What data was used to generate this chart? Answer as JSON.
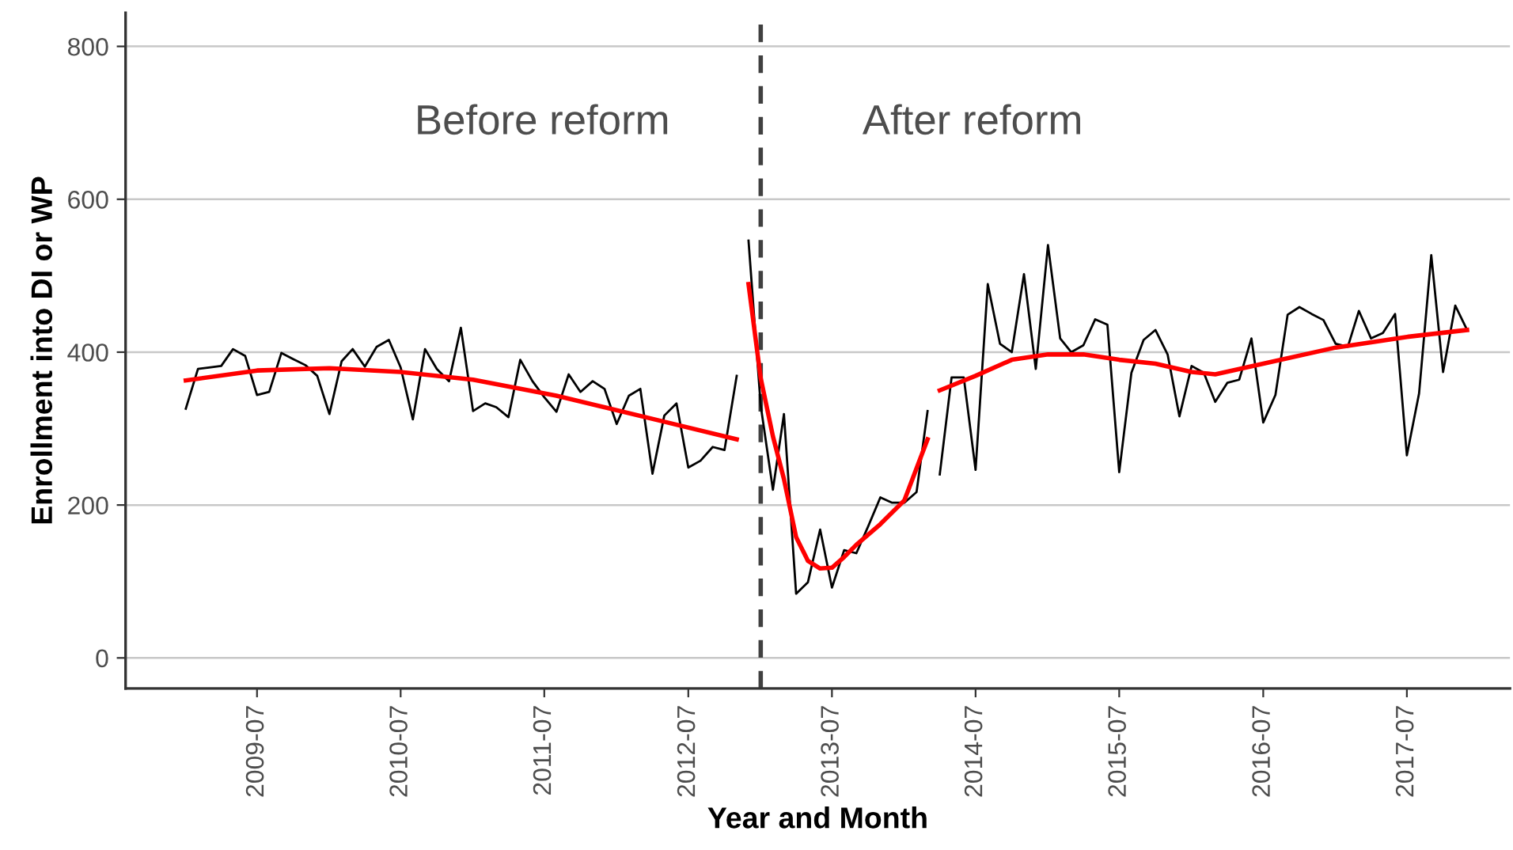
{
  "chart_data": {
    "type": "line",
    "xlabel": "Year and Month",
    "ylabel": "Enrollment into DI or WP",
    "xlim": [
      "2008-08-01",
      "2018-03-20"
    ],
    "xticks": [
      "2009-07",
      "2010-07",
      "2011-07",
      "2012-07",
      "2013-07",
      "2014-07",
      "2015-07",
      "2016-07",
      "2017-07"
    ],
    "ylim": [
      -40,
      844
    ],
    "yticks": [
      0,
      200,
      400,
      600,
      800
    ],
    "grid": "y",
    "legend": false,
    "marker": "none",
    "line_style": "solid",
    "ref_lines": [
      {
        "axis": "x",
        "value": "2013-01",
        "label": null,
        "color": "#404040",
        "line_style": "dashed"
      }
    ],
    "annotations": [
      "Before reform",
      "After reform"
    ],
    "series": [
      {
        "color": "#000000",
        "x": [
          "2009-01",
          "2009-02",
          "2009-03",
          "2009-04",
          "2009-05",
          "2009-06",
          "2009-07",
          "2009-08",
          "2009-09",
          "2009-10",
          "2009-11",
          "2009-12",
          "2010-01",
          "2010-02",
          "2010-03",
          "2010-04",
          "2010-05",
          "2010-06",
          "2010-07",
          "2010-08",
          "2010-09",
          "2010-10",
          "2010-11",
          "2010-12",
          "2011-01",
          "2011-02",
          "2011-03",
          "2011-04",
          "2011-05",
          "2011-06",
          "2011-07",
          "2011-08",
          "2011-09",
          "2011-10",
          "2011-11",
          "2011-12",
          "2012-01",
          "2012-02",
          "2012-03",
          "2012-04",
          "2012-05",
          "2012-06",
          "2012-07",
          "2012-08",
          "2012-09",
          "2012-10",
          "2012-11"
        ],
        "values": [
          326,
          378,
          380,
          382,
          404,
          395,
          344,
          348,
          399,
          391,
          383,
          369,
          319,
          388,
          404,
          381,
          407,
          416,
          380,
          312,
          404,
          378,
          362,
          432,
          323,
          333,
          328,
          315,
          390,
          362,
          341,
          322,
          371,
          348,
          362,
          352,
          306,
          343,
          352,
          241,
          317,
          333,
          249,
          258,
          276,
          272,
          369
        ]
      },
      {
        "color": "#000000",
        "x": [
          "2012-12",
          "2013-01",
          "2013-02",
          "2013-03",
          "2013-04",
          "2013-05",
          "2013-06",
          "2013-07",
          "2013-08",
          "2013-09",
          "2013-10",
          "2013-11",
          "2013-12",
          "2014-01",
          "2014-02",
          "2014-03"
        ],
        "values": [
          546,
          330,
          220,
          319,
          84,
          99,
          168,
          92,
          141,
          137,
          172,
          210,
          203,
          203,
          217,
          323
        ]
      },
      {
        "color": "#000000",
        "x": [
          "2014-04",
          "2014-05",
          "2014-06",
          "2014-07",
          "2014-08",
          "2014-09",
          "2014-10",
          "2014-11",
          "2014-12",
          "2015-01",
          "2015-02",
          "2015-03",
          "2015-04",
          "2015-05",
          "2015-06",
          "2015-07",
          "2015-08",
          "2015-09",
          "2015-10",
          "2015-11",
          "2015-12",
          "2016-01",
          "2016-02",
          "2016-03",
          "2016-04",
          "2016-05",
          "2016-06",
          "2016-07",
          "2016-08",
          "2016-09",
          "2016-10",
          "2016-11",
          "2016-12",
          "2017-01",
          "2017-02",
          "2017-03",
          "2017-04",
          "2017-05",
          "2017-06",
          "2017-07",
          "2017-08",
          "2017-09",
          "2017-10",
          "2017-11",
          "2017-12"
        ],
        "values": [
          240,
          367,
          367,
          246,
          489,
          411,
          400,
          502,
          378,
          540,
          418,
          400,
          409,
          443,
          436,
          243,
          373,
          416,
          429,
          397,
          316,
          382,
          373,
          335,
          360,
          364,
          418,
          308,
          344,
          449,
          459,
          450,
          442,
          411,
          407,
          454,
          418,
          425,
          450,
          265,
          346,
          527,
          374,
          461,
          429
        ]
      },
      {
        "color": "#ff0000",
        "x": [
          "2009-01",
          "2009-07",
          "2010-01",
          "2010-07",
          "2011-01",
          "2011-08",
          "2012-05",
          "2012-11"
        ],
        "values": [
          363,
          376,
          379,
          374,
          364,
          343,
          309,
          286
        ]
      },
      {
        "color": "#ff0000",
        "x": [
          "2012-12",
          "2013-01",
          "2013-02",
          "2013-03",
          "2013-04",
          "2013-05",
          "2013-06",
          "2013-07",
          "2013-08",
          "2013-09",
          "2013-11",
          "2014-01",
          "2014-03"
        ],
        "values": [
          489,
          366,
          290,
          234,
          158,
          127,
          117,
          118,
          132,
          148,
          175,
          206,
          286
        ]
      },
      {
        "color": "#ff0000",
        "x": [
          "2014-04",
          "2014-07",
          "2014-10",
          "2015-01",
          "2015-04",
          "2015-07",
          "2015-10",
          "2016-01",
          "2016-03",
          "2016-07",
          "2017-01",
          "2017-07",
          "2017-12"
        ],
        "values": [
          350,
          369,
          390,
          397,
          397,
          390,
          385,
          374,
          371,
          385,
          406,
          420,
          429
        ]
      }
    ]
  }
}
